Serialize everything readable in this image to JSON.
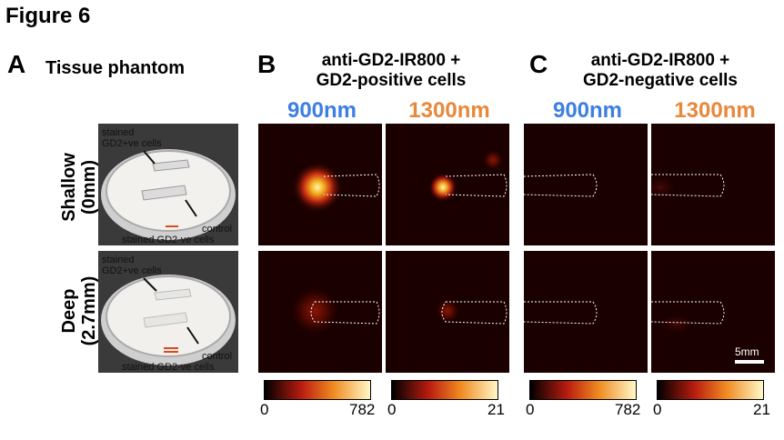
{
  "figure_title": "Figure 6",
  "panels": {
    "a": {
      "letter": "A",
      "title": "Tissue phantom"
    },
    "b": {
      "letter": "B",
      "title_line1": "anti-GD2-IR800 +",
      "title_line2": "GD2-positive cells"
    },
    "c": {
      "letter": "C",
      "title_line1": "anti-GD2-IR800 +",
      "title_line2": "GD2-negative cells"
    }
  },
  "wavelengths": {
    "w900": "900nm",
    "w1300": "1300nm"
  },
  "rows": {
    "shallow": {
      "line1": "Shallow",
      "line2": "(0mm)"
    },
    "deep": {
      "line1": "Deep",
      "line2": "(2.7mm)"
    }
  },
  "photo_labels": {
    "stained_top": "stained",
    "gd2_pos": "GD2+ve cells",
    "control": "control",
    "stained_neg": "stained GD2-ve cells"
  },
  "scale_bar": "5mm",
  "colorbars": {
    "b900": {
      "min": "0",
      "max": "782"
    },
    "b1300": {
      "min": "0",
      "max": "21"
    },
    "c900": {
      "min": "0",
      "max": "782"
    },
    "c1300": {
      "min": "0",
      "max": "21"
    }
  },
  "colors": {
    "wl900": "#3d7fe0",
    "wl1300": "#e8883a",
    "hot_low": "#000000",
    "hot_mid": "#b81c10",
    "hot_high": "#fff3a0"
  }
}
